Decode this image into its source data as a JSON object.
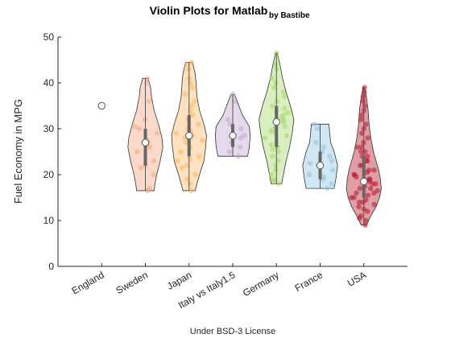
{
  "chart_data": {
    "type": "violin",
    "title": "Violin Plots for Matlab",
    "subtitle": "by Bastibe",
    "xlabel": "Under BSD-3 License",
    "ylabel": "Fuel Economy in MPG",
    "ylim": [
      0,
      50
    ],
    "yticks": [
      "0",
      "10",
      "20",
      "30",
      "40",
      "50"
    ],
    "grid": false,
    "categories": [
      "England",
      "Sweden",
      "Japan",
      "Italy vs Italy1.5",
      "Germany",
      "France",
      "USA"
    ],
    "series": [
      {
        "color": "#ffffff",
        "median": 35,
        "min": 35,
        "max": 35,
        "q1": 35,
        "q3": 35,
        "points": [
          35
        ],
        "density": []
      },
      {
        "color": "#f4a582",
        "median": 27,
        "min": 16.5,
        "max": 41,
        "q1": 22,
        "q3": 30,
        "points": [
          16.5,
          17,
          20,
          21.5,
          22,
          23,
          25,
          26,
          26.5,
          27,
          27.5,
          29,
          30,
          30.5,
          32,
          36,
          40,
          41
        ],
        "density": [
          [
            16.5,
            0.5
          ],
          [
            18,
            0.55
          ],
          [
            20,
            0.65
          ],
          [
            23,
            0.85
          ],
          [
            26,
            1.0
          ],
          [
            28,
            0.95
          ],
          [
            31,
            0.75
          ],
          [
            34,
            0.5
          ],
          [
            37,
            0.35
          ],
          [
            39,
            0.3
          ],
          [
            41,
            0.15
          ]
        ]
      },
      {
        "color": "#fdb863",
        "median": 28.5,
        "min": 16.5,
        "max": 44.5,
        "q1": 24,
        "q3": 33,
        "points": [
          16.5,
          18,
          19,
          20,
          21.5,
          22,
          23,
          23.5,
          24,
          25,
          26,
          27,
          27.5,
          28,
          28.5,
          29,
          29.5,
          30,
          31,
          32,
          33,
          34,
          35,
          36,
          37.5,
          39,
          40,
          41,
          43,
          44,
          44.5
        ],
        "density": [
          [
            16.5,
            0.35
          ],
          [
            18,
            0.45
          ],
          [
            20,
            0.6
          ],
          [
            23,
            0.85
          ],
          [
            26,
            0.95
          ],
          [
            28.5,
            1.0
          ],
          [
            31,
            0.85
          ],
          [
            34,
            0.6
          ],
          [
            37,
            0.45
          ],
          [
            40,
            0.4
          ],
          [
            42,
            0.35
          ],
          [
            44.5,
            0.2
          ]
        ]
      },
      {
        "color": "#c2a5cf",
        "median": 28.5,
        "min": 24,
        "max": 37.5,
        "q1": 26,
        "q3": 31,
        "points": [
          24,
          25,
          26,
          27,
          28,
          28.5,
          30,
          31,
          32,
          36,
          37.5
        ],
        "density": [
          [
            24,
            0.85
          ],
          [
            26,
            0.95
          ],
          [
            28.5,
            1.0
          ],
          [
            30.5,
            0.95
          ],
          [
            33,
            0.55
          ],
          [
            35,
            0.35
          ],
          [
            37.5,
            0.1
          ]
        ]
      },
      {
        "color": "#a6d96a",
        "median": 31.5,
        "min": 18,
        "max": 46.5,
        "q1": 26,
        "q3": 35,
        "points": [
          18,
          18.5,
          19,
          20,
          21,
          22,
          23,
          24,
          25,
          25.5,
          26,
          26.5,
          27,
          28,
          28.5,
          29,
          29.5,
          30,
          30.5,
          31,
          31.5,
          32,
          32.5,
          33,
          33.5,
          34,
          34.5,
          35,
          36,
          37,
          38,
          39,
          40,
          41,
          43,
          44,
          46.5
        ],
        "density": [
          [
            18,
            0.3
          ],
          [
            20,
            0.4
          ],
          [
            23,
            0.55
          ],
          [
            26,
            0.75
          ],
          [
            29,
            0.9
          ],
          [
            32,
            1.0
          ],
          [
            35,
            0.8
          ],
          [
            38,
            0.55
          ],
          [
            41,
            0.35
          ],
          [
            44,
            0.2
          ],
          [
            46.5,
            0.05
          ]
        ]
      },
      {
        "color": "#92c5de",
        "median": 22,
        "min": 17,
        "max": 31,
        "q1": 19,
        "q3": 25,
        "points": [
          17,
          18,
          19,
          19.5,
          20,
          21,
          22,
          22.5,
          23,
          24,
          25,
          26,
          27,
          30,
          31
        ],
        "density": [
          [
            17,
            0.8
          ],
          [
            19,
            0.9
          ],
          [
            22,
            1.0
          ],
          [
            25,
            0.8
          ],
          [
            27,
            0.6
          ],
          [
            29,
            0.55
          ],
          [
            31,
            0.5
          ]
        ]
      },
      {
        "color": "#b2182b",
        "median": 18.5,
        "min": 9,
        "max": 39,
        "q1": 15,
        "q3": 24,
        "points": [
          9,
          10,
          10.5,
          11,
          12,
          12.5,
          13,
          13.5,
          14,
          14,
          14.5,
          15,
          15,
          15.5,
          16,
          16,
          16.5,
          17,
          17,
          17.5,
          18,
          18,
          18.5,
          19,
          19,
          19.5,
          20,
          20,
          20.5,
          21,
          21,
          22,
          22,
          23,
          23,
          24,
          24,
          25,
          25,
          26,
          26,
          27,
          28,
          29,
          30,
          31,
          32,
          33,
          34,
          35,
          36,
          37,
          38,
          39
        ],
        "density": [
          [
            9,
            0.15
          ],
          [
            11,
            0.4
          ],
          [
            13,
            0.7
          ],
          [
            15,
            0.9
          ],
          [
            17,
            1.0
          ],
          [
            19,
            0.95
          ],
          [
            21,
            0.85
          ],
          [
            23,
            0.7
          ],
          [
            25,
            0.55
          ],
          [
            28,
            0.4
          ],
          [
            31,
            0.3
          ],
          [
            34,
            0.25
          ],
          [
            37,
            0.15
          ],
          [
            39,
            0.05
          ]
        ]
      }
    ]
  }
}
